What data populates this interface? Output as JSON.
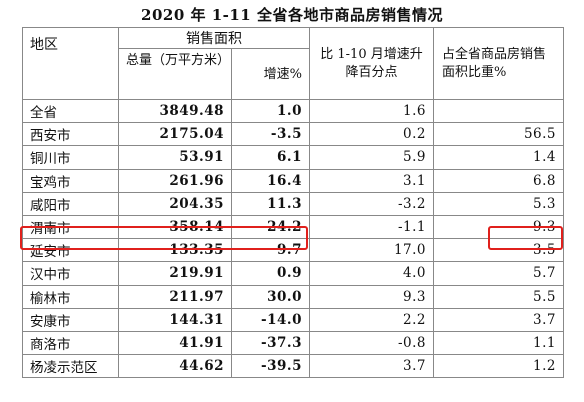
{
  "title": "2020 年 1-11 全省各地市商品房销售情况",
  "header": {
    "region": "地区",
    "sales_area": "销售面积",
    "total": "总量（万平方米）",
    "growth": "增速%",
    "change": "比 1-10 月增速升降百分点",
    "share": "占全省商品房销售面积比重%"
  },
  "rows": [
    {
      "name": "全省",
      "total": "3849.48",
      "growth": "1.0",
      "change": "1.6",
      "share": ""
    },
    {
      "name": "西安市",
      "total": "2175.04",
      "growth": "-3.5",
      "change": "0.2",
      "share": "56.5"
    },
    {
      "name": "铜川市",
      "total": "53.91",
      "growth": "6.1",
      "change": "5.9",
      "share": "1.4"
    },
    {
      "name": "宝鸡市",
      "total": "261.96",
      "growth": "16.4",
      "change": "3.1",
      "share": "6.8"
    },
    {
      "name": "咸阳市",
      "total": "204.35",
      "growth": "11.3",
      "change": "-3.2",
      "share": "5.3"
    },
    {
      "name": "渭南市",
      "total": "358.14",
      "growth": "24.2",
      "change": "-1.1",
      "share": "9.3"
    },
    {
      "name": "延安市",
      "total": "133.35",
      "growth": "9.7",
      "change": "17.0",
      "share": "3.5"
    },
    {
      "name": "汉中市",
      "total": "219.91",
      "growth": "0.9",
      "change": "4.0",
      "share": "5.7"
    },
    {
      "name": "榆林市",
      "total": "211.97",
      "growth": "30.0",
      "change": "9.3",
      "share": "5.5"
    },
    {
      "name": "安康市",
      "total": "144.31",
      "growth": "-14.0",
      "change": "2.2",
      "share": "3.7"
    },
    {
      "name": "商洛市",
      "total": "41.91",
      "growth": "-37.3",
      "change": "-0.8",
      "share": "1.1"
    },
    {
      "name": "杨凌示范区",
      "total": "44.62",
      "growth": "-39.5",
      "change": "3.7",
      "share": "1.2"
    }
  ],
  "highlight_color": "#e0201c"
}
